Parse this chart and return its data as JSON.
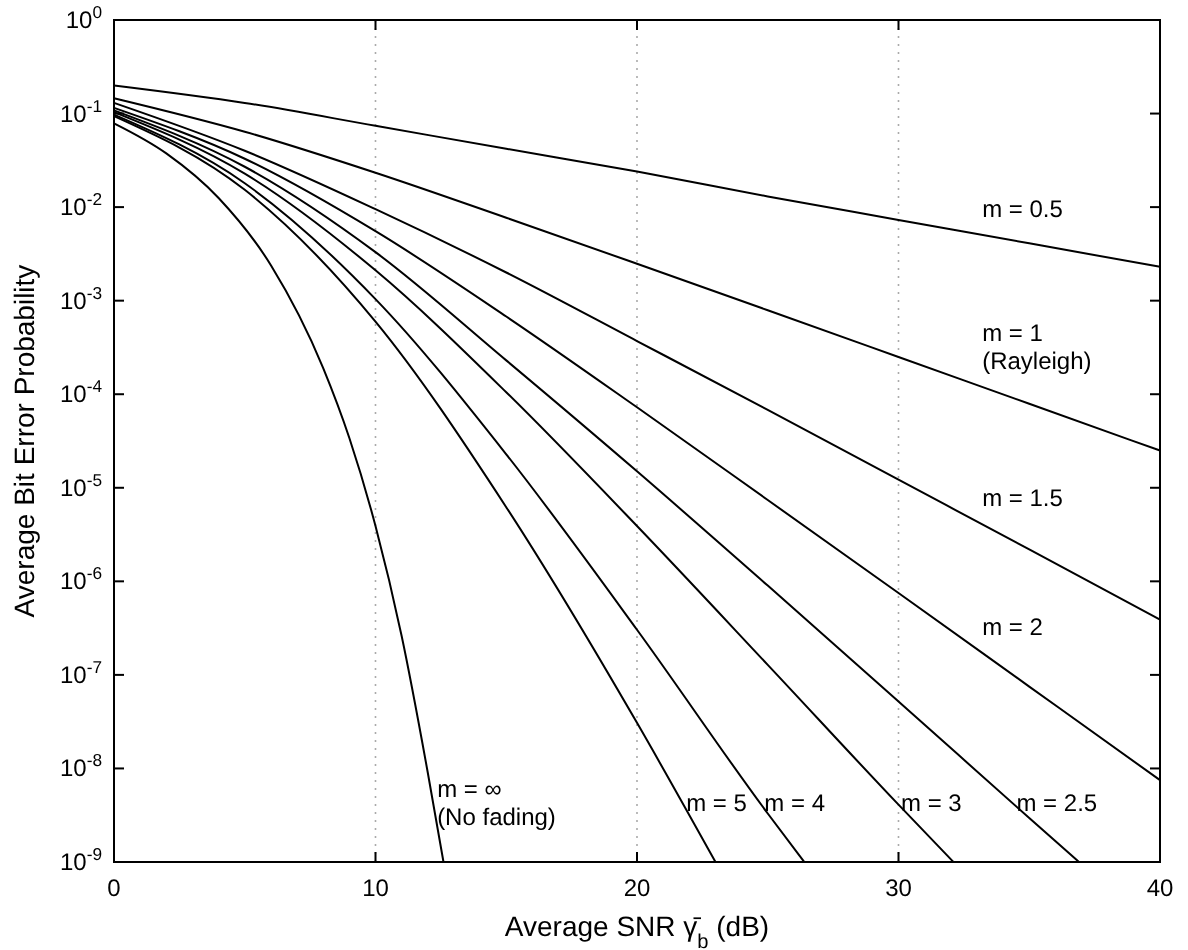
{
  "chart_data": {
    "type": "line",
    "xlabel": "Average SNR γ̄$_{b}$ (dB)",
    "ylabel": "Average Bit Error Probability",
    "log": "y",
    "grid": "x",
    "marker": "none",
    "line_style": "solid",
    "xlim": [
      0,
      40
    ],
    "xticks": [
      0,
      10,
      20,
      30,
      40
    ],
    "ylim": [
      1e-09,
      1
    ],
    "yticks": [
      {
        "value": 1e-09,
        "label": "10$^{-9}$"
      },
      {
        "value": 1e-08,
        "label": "10$^{-8}$"
      },
      {
        "value": 1e-07,
        "label": "10$^{-7}$"
      },
      {
        "value": 1e-06,
        "label": "10$^{-6}$"
      },
      {
        "value": 1e-05,
        "label": "10$^{-5}$"
      },
      {
        "value": 0.0001,
        "label": "10$^{-4}$"
      },
      {
        "value": 0.001,
        "label": "10$^{-3}$"
      },
      {
        "value": 0.01,
        "label": "10$^{-2}$"
      },
      {
        "value": 0.1,
        "label": "10$^{-1}$"
      },
      {
        "value": 1,
        "label": "10$^{0}$"
      }
    ],
    "series": [
      {
        "name": "m = 0.5",
        "color": "#000000",
        "x": [
          0,
          5,
          10,
          15,
          20,
          25,
          30,
          35,
          40
        ],
        "values": [
          0.2,
          0.13,
          0.074,
          0.042,
          0.024,
          0.013,
          0.0073,
          0.0041,
          0.0023
        ]
      },
      {
        "name": "m = 1 (Rayleigh)",
        "color": "#000000",
        "x": [
          0,
          5,
          10,
          15,
          20,
          25,
          30,
          35,
          40
        ],
        "values": [
          0.146,
          0.064,
          0.0233,
          0.0077,
          0.00248,
          0.00079,
          0.00025,
          7.9e-05,
          2.5e-05
        ]
      },
      {
        "name": "m = 1.5",
        "color": "#000000",
        "x": [
          0,
          5,
          10,
          15,
          20,
          25,
          30,
          35,
          40
        ],
        "values": [
          0.13,
          0.04,
          0.0095,
          0.002,
          0.00037,
          6.8e-05,
          1.22e-05,
          2.19e-06,
          3.9e-07
        ]
      },
      {
        "name": "m = 2",
        "color": "#000000",
        "x": [
          0,
          5,
          10,
          15,
          20,
          25,
          30,
          35,
          40
        ],
        "values": [
          0.115,
          0.0329,
          0.00553,
          0.000677,
          7.25e-05,
          7.4e-06,
          7.5e-07,
          7.5e-08,
          7.5e-09
        ]
      },
      {
        "name": "m = 2.5",
        "color": "#000000",
        "x": [
          0,
          5,
          10,
          15,
          20,
          25,
          30,
          35,
          36.9
        ],
        "values": [
          0.108,
          0.027,
          0.0033,
          0.00023,
          1.5e-05,
          9e-07,
          5.2e-08,
          2.95e-09,
          1e-09
        ]
      },
      {
        "name": "m = 3",
        "color": "#000000",
        "x": [
          0,
          5,
          10,
          15,
          20,
          25,
          30,
          32.1
        ],
        "values": [
          0.1035,
          0.0228,
          0.00211,
          0.000105,
          3.9e-06,
          1.28e-07,
          4.1e-09,
          1e-09
        ]
      },
      {
        "name": "m = 4",
        "color": "#000000",
        "x": [
          0,
          5,
          10,
          15,
          20,
          25,
          26.4
        ],
        "values": [
          0.0975,
          0.018,
          0.00104,
          2.28e-05,
          3.04e-07,
          3.3e-09,
          1e-09
        ]
      },
      {
        "name": "m = 5",
        "color": "#000000",
        "x": [
          0,
          5,
          10,
          15,
          20,
          23
        ],
        "values": [
          0.0937,
          0.0153,
          0.000597,
          6.2e-06,
          3.07e-08,
          1e-09
        ]
      },
      {
        "name": "m = ∞ (No fading)",
        "color": "#000000",
        "x": [
          0,
          2,
          4,
          6,
          8,
          9,
          10,
          11,
          12,
          12.6
        ],
        "values": [
          0.0786,
          0.0375,
          0.0125,
          0.00239,
          0.00019,
          3.4e-05,
          3.9e-06,
          2.6e-07,
          9e-09,
          1e-09
        ]
      }
    ]
  }
}
